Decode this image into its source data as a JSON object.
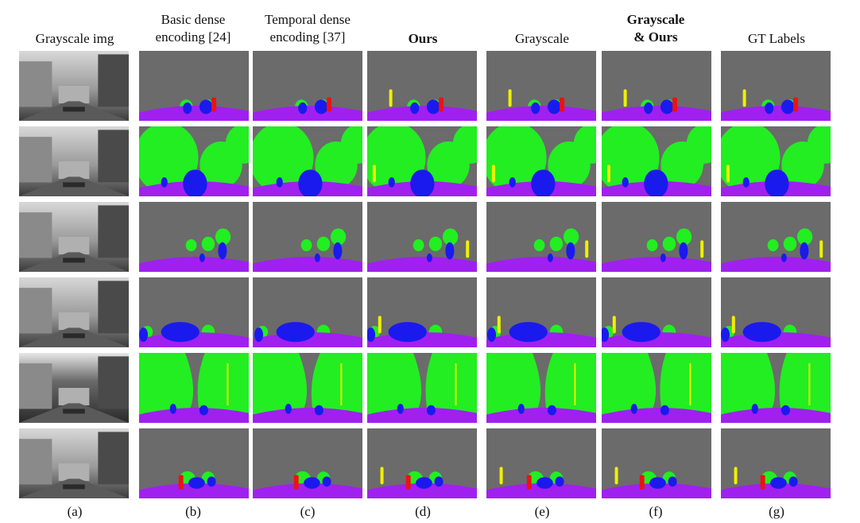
{
  "figure": {
    "columns": [
      {
        "id": "a",
        "header_lines": [
          "Grayscale img"
        ],
        "bold": false,
        "label": "(a)"
      },
      {
        "id": "b",
        "header_lines": [
          "Basic dense",
          "encoding [24]"
        ],
        "bold": false,
        "label": "(b)"
      },
      {
        "id": "c",
        "header_lines": [
          "Temporal dense",
          "encoding [37]"
        ],
        "bold": false,
        "label": "(c)"
      },
      {
        "id": "d",
        "header_lines": [
          "Ours"
        ],
        "bold": true,
        "label": "(d)"
      },
      {
        "id": "e",
        "header_lines": [
          "Grayscale"
        ],
        "bold": false,
        "label": "(e)"
      },
      {
        "id": "f",
        "header_lines": [
          "Grayscale",
          "& Ours"
        ],
        "bold": true,
        "label": "(f)"
      },
      {
        "id": "g",
        "header_lines": [
          "GT Labels"
        ],
        "bold": false,
        "label": "(g)"
      }
    ],
    "row_count": 6,
    "colors": {
      "background": "#6b6b6b",
      "road": "#a020f0",
      "vegetation": "#22ee22",
      "vehicle": "#1a1aee",
      "person": "#ee1111",
      "pole": "#f0f000"
    }
  }
}
